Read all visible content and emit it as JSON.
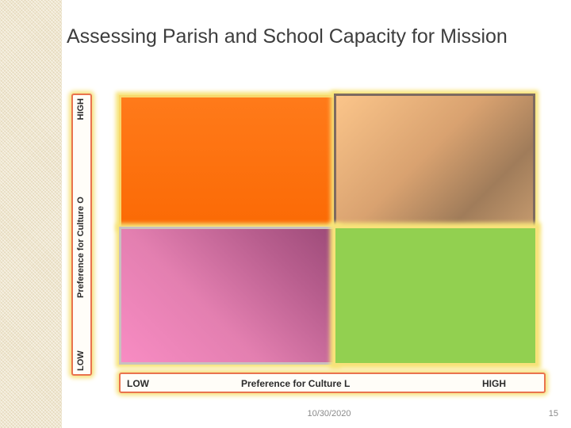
{
  "slide": {
    "title": "Assessing Parish and School Capacity for Mission",
    "date": "10/30/2020",
    "page_number": "15"
  },
  "y_axis": {
    "low_label": "LOW",
    "title": "Preference for Culture O",
    "high_label": "HIGH"
  },
  "x_axis": {
    "low_label": "LOW",
    "title": "Preference for Culture L",
    "high_label": "HIGH"
  },
  "quadrants": {
    "top_left": {
      "color": "#fb6a05"
    },
    "top_right": {
      "color": "#d9a270"
    },
    "bottom_left": {
      "color": "#e37fb0"
    },
    "bottom_right": {
      "color": "#92d050"
    }
  }
}
